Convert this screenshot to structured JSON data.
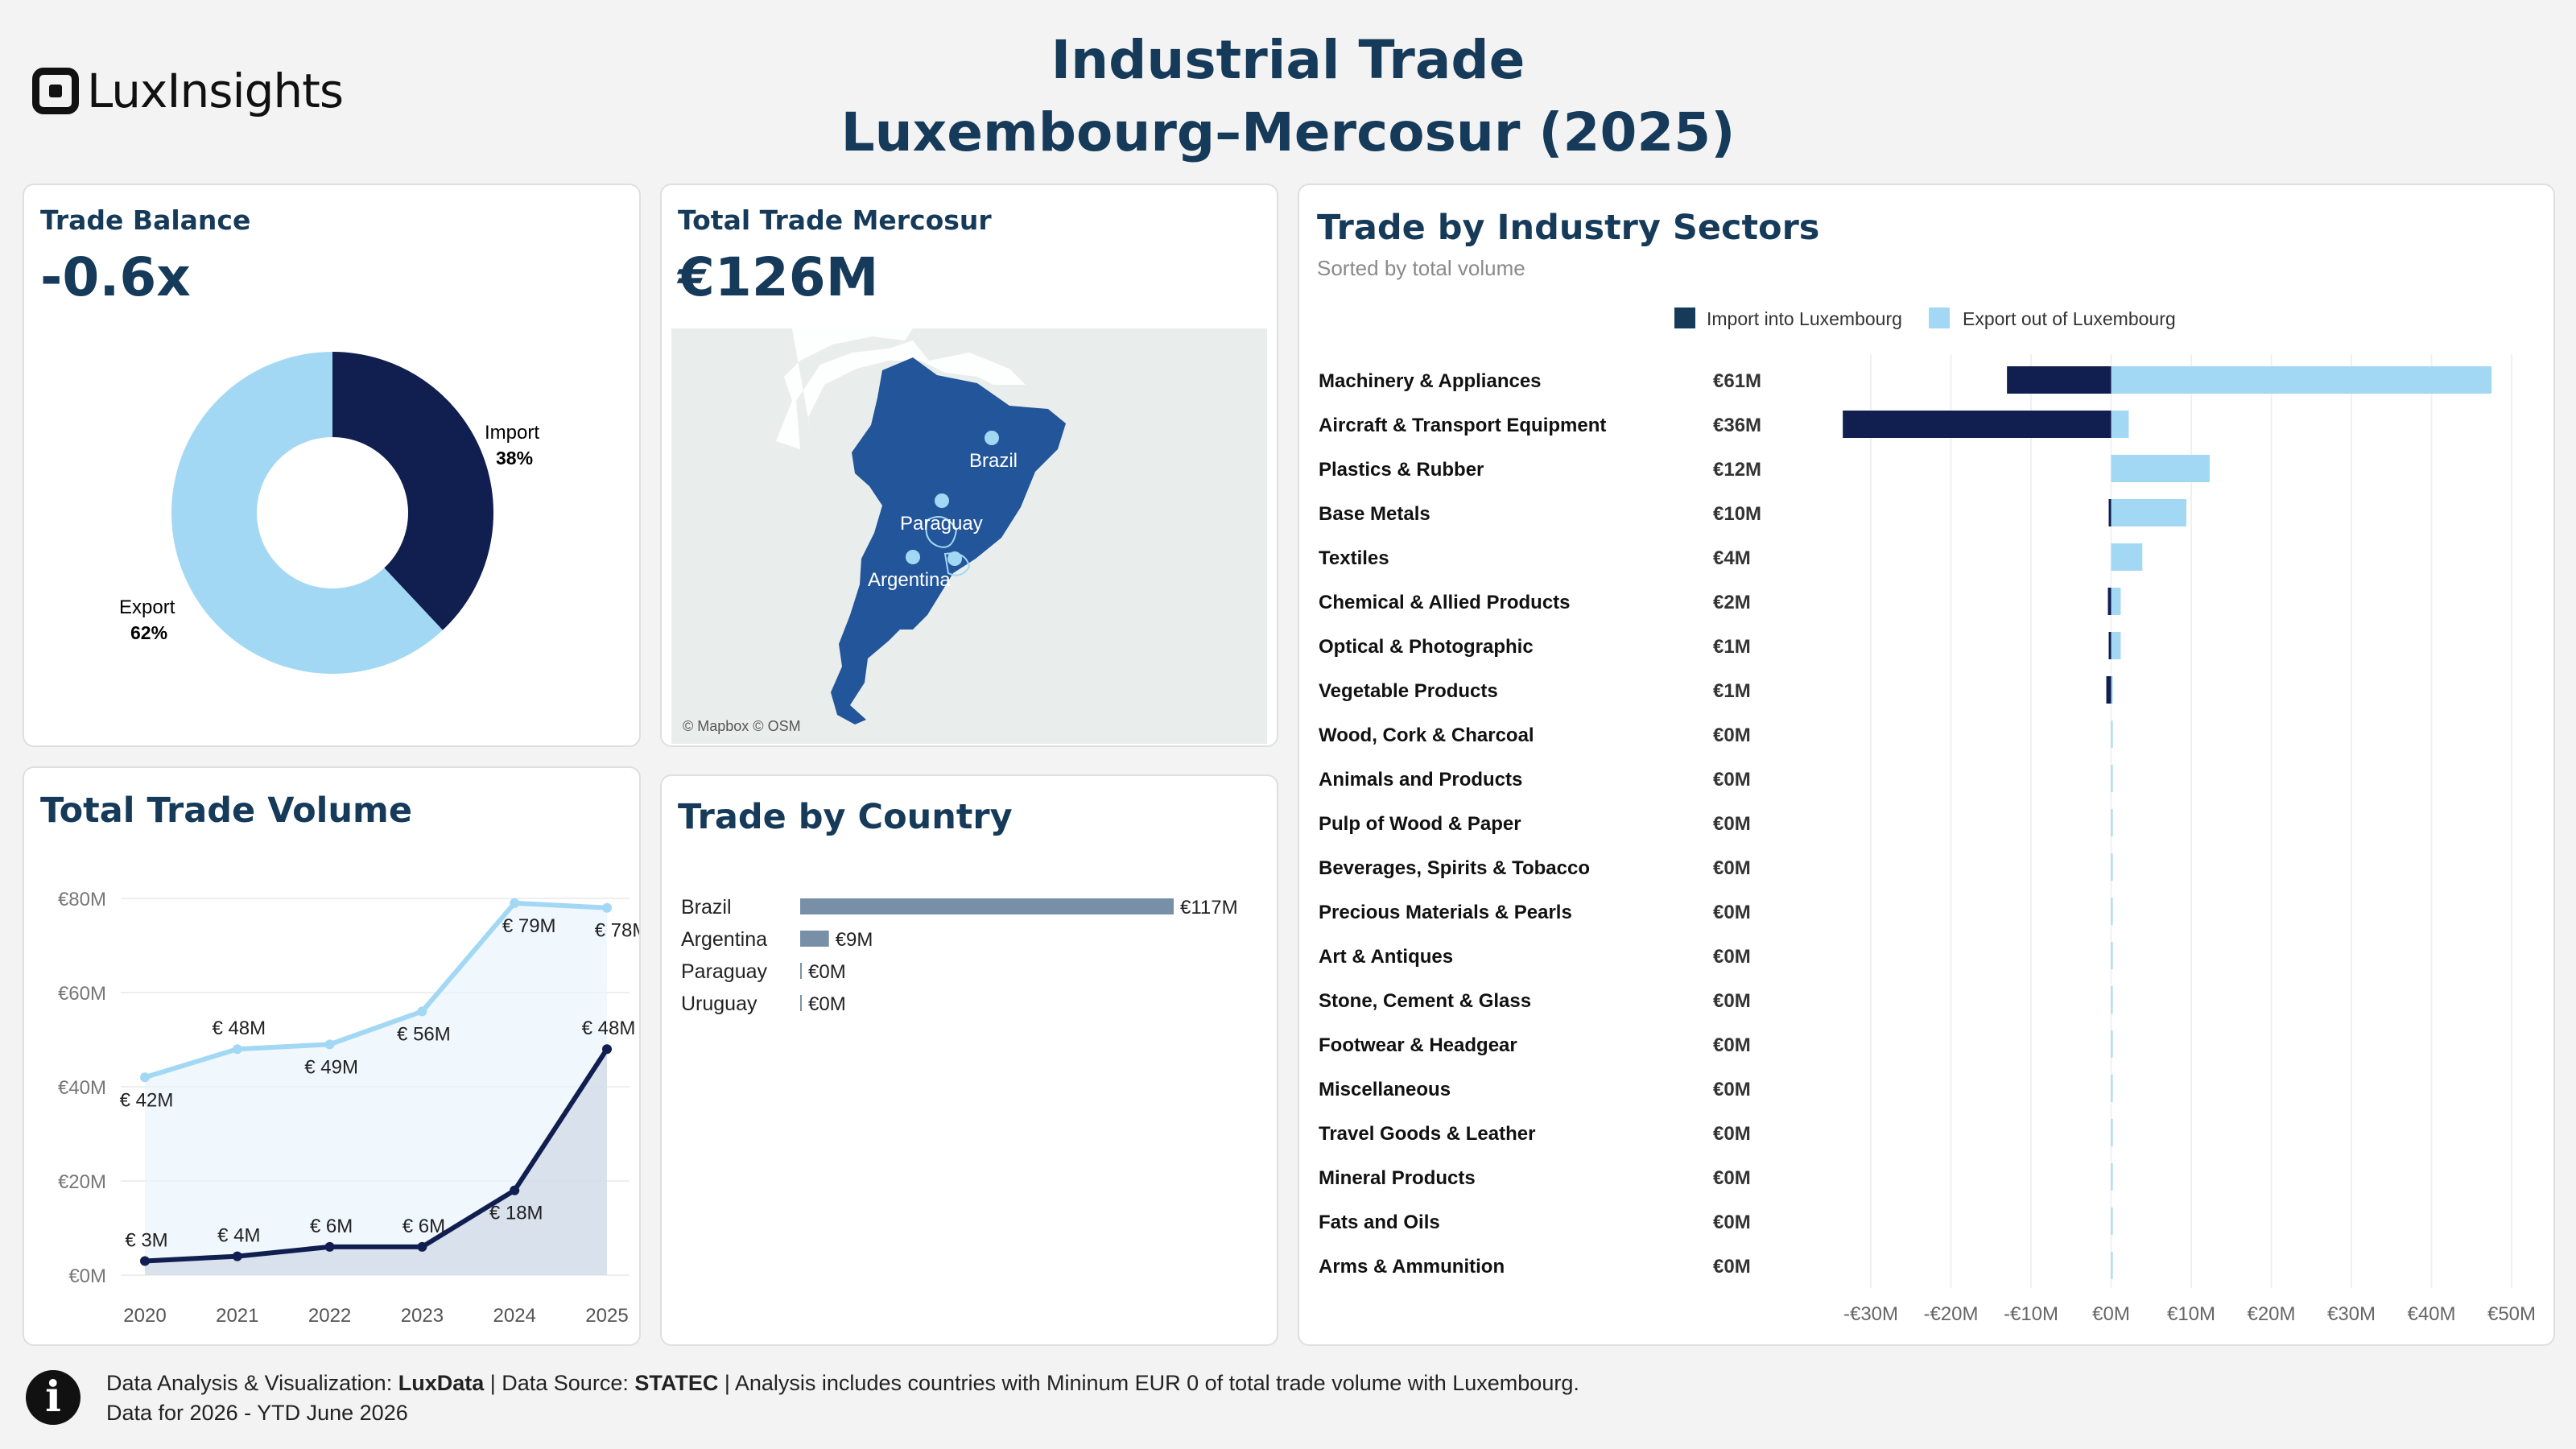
{
  "header": {
    "brand": "LuxInsights",
    "title_line1": "Industrial Trade",
    "title_line2": "Luxembourg–Mercosur  (2025)"
  },
  "trade_balance": {
    "label": "Trade Balance",
    "value": "-0.6x",
    "import_label": "Import",
    "import_pct": "38%",
    "export_label": "Export",
    "export_pct": "62%"
  },
  "total_trade": {
    "label": "Total Trade Mercosur",
    "value": "€126M",
    "map_attribution": "© Mapbox © OSM",
    "map_labels": [
      "Brazil",
      "Paraguay",
      "Argentina"
    ]
  },
  "volume": {
    "title": "Total Trade Volume"
  },
  "country": {
    "title": "Trade by Country"
  },
  "sectors": {
    "title": "Trade by Industry Sectors",
    "subtitle": "Sorted by total volume",
    "legend_import": "Import into Luxembourg",
    "legend_export": "Export out of Luxembourg"
  },
  "footer": {
    "line1_prefix": "Data Analysis & Visualization: ",
    "line1_brand": "LuxData",
    "line1_mid": " | Data Source: ",
    "line1_source": "STATEC",
    "line1_suffix": " | Analysis includes countries with Mininum EUR 0 of total trade volume with Luxembourg.",
    "line2": "Data for 2026 - YTD June 2026"
  },
  "colors": {
    "import": "#101e50",
    "export": "#a3d8f4",
    "title": "#163a59",
    "country_bar": "#7790a8"
  },
  "chart_data": [
    {
      "type": "pie",
      "labels": [
        "Import",
        "Export"
      ],
      "values": [
        38,
        62
      ]
    },
    {
      "type": "line",
      "title": "Total Trade Volume",
      "x": [
        "2020",
        "2021",
        "2022",
        "2023",
        "2024",
        "2025"
      ],
      "ylim": [
        0,
        80
      ],
      "yticks": [
        "€0M",
        "€20M",
        "€40M",
        "€60M",
        "€80M"
      ],
      "series": [
        {
          "name": "Export",
          "values": [
            42,
            48,
            49,
            56,
            79,
            78
          ],
          "labels": [
            "€ 42M",
            "€ 48M",
            "€ 49M",
            "€ 56M",
            "€ 79M",
            "€ 78M"
          ]
        },
        {
          "name": "Import",
          "values": [
            3,
            4,
            6,
            6,
            18,
            48
          ],
          "labels": [
            "€ 3M",
            "€ 4M",
            "€ 6M",
            "€ 6M",
            "€ 18M",
            "€ 48M"
          ]
        }
      ]
    },
    {
      "type": "bar",
      "title": "Trade by Country",
      "categories": [
        "Brazil",
        "Argentina",
        "Paraguay",
        "Uruguay"
      ],
      "values": [
        117,
        9,
        0,
        0
      ],
      "labels": [
        "€117M",
        "€9M",
        "€0M",
        "€0M"
      ]
    },
    {
      "type": "bar",
      "title": "Trade by Industry Sectors",
      "xlim": [
        -30,
        50
      ],
      "xticks": [
        "-€30M",
        "-€20M",
        "-€10M",
        "€0M",
        "€10M",
        "€20M",
        "€30M",
        "€40M",
        "€50M"
      ],
      "categories": [
        "Machinery & Appliances",
        "Aircraft & Transport Equipment",
        "Plastics & Rubber",
        "Base Metals",
        "Textiles",
        "Chemical & Allied Products",
        "Optical & Photographic",
        "Vegetable Products",
        "Wood, Cork & Charcoal",
        "Animals and Products",
        "Pulp of Wood & Paper",
        "Beverages, Spirits & Tobacco",
        "Precious Materials & Pearls",
        "Art & Antiques",
        "Stone, Cement & Glass",
        "Footwear & Headgear",
        "Miscellaneous",
        "Travel Goods & Leather",
        "Mineral Products",
        "Fats and Oils",
        "Arms & Ammunition"
      ],
      "totals": [
        "€61M",
        "€36M",
        "€12M",
        "€10M",
        "€4M",
        "€2M",
        "€1M",
        "€1M",
        "€0M",
        "€0M",
        "€0M",
        "€0M",
        "€0M",
        "€0M",
        "€0M",
        "€0M",
        "€0M",
        "€0M",
        "€0M",
        "€0M",
        "€0M"
      ],
      "series": [
        {
          "name": "Import into Luxembourg",
          "values": [
            -13,
            -33.5,
            0,
            -0.3,
            0,
            -0.4,
            -0.2,
            -0.6,
            0,
            0,
            0,
            0,
            0,
            0,
            0,
            0,
            0,
            0,
            0,
            0,
            0
          ]
        },
        {
          "name": "Export out of Luxembourg",
          "values": [
            47.5,
            2.2,
            12.3,
            9.4,
            3.9,
            1.2,
            1.2,
            0.1,
            0.2,
            0.2,
            0.2,
            0.2,
            0.2,
            0.2,
            0.2,
            0.2,
            0.2,
            0.2,
            0.2,
            0.2,
            0.2
          ]
        }
      ]
    }
  ]
}
